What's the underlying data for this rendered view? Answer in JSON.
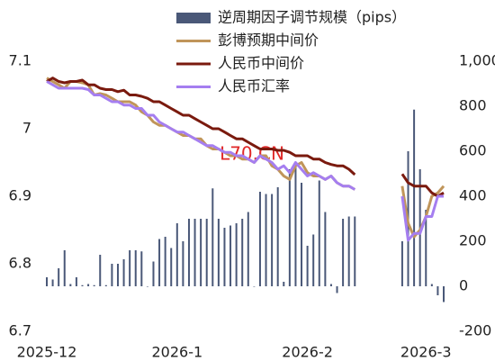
{
  "chart_data": {
    "type": "combo",
    "watermark": "L70.CN",
    "categories": [
      "2025-12",
      null,
      null,
      null,
      null,
      null,
      null,
      null,
      null,
      null,
      null,
      null,
      null,
      null,
      null,
      null,
      null,
      null,
      null,
      null,
      null,
      null,
      "2026-1",
      null,
      null,
      null,
      null,
      null,
      null,
      null,
      null,
      null,
      null,
      null,
      null,
      null,
      null,
      null,
      null,
      null,
      null,
      null,
      null,
      null,
      "2026-2",
      null,
      null,
      null,
      null,
      null,
      null,
      null,
      null,
      null,
      null,
      null,
      null,
      null,
      null,
      null,
      null,
      null,
      null,
      null,
      "2026-3",
      null,
      null,
      null
    ],
    "series": [
      {
        "name": "逆周期因子调节规模（pips）",
        "type": "bar",
        "axis": "y2",
        "color": "#4a5878",
        "values": [
          40,
          30,
          80,
          160,
          10,
          40,
          5,
          10,
          5,
          140,
          5,
          100,
          100,
          120,
          160,
          160,
          155,
          0,
          110,
          210,
          220,
          170,
          280,
          200,
          300,
          300,
          300,
          300,
          435,
          300,
          260,
          270,
          280,
          300,
          330,
          0,
          420,
          410,
          410,
          440,
          20,
          520,
          530,
          460,
          180,
          230,
          470,
          330,
          10,
          -30,
          300,
          310,
          310,
          null,
          null,
          null,
          null,
          null,
          null,
          null,
          200,
          600,
          785,
          520,
          340,
          10,
          -40,
          -70
        ]
      },
      {
        "name": "彭博预期中间价",
        "type": "line",
        "color": "#c0955a",
        "values": [
          7.075,
          7.07,
          7.065,
          7.06,
          7.07,
          7.07,
          7.068,
          7.065,
          7.05,
          7.052,
          7.05,
          7.045,
          7.04,
          7.04,
          7.04,
          7.035,
          7.025,
          7.02,
          7.01,
          7.005,
          7.005,
          7.0,
          6.995,
          6.99,
          6.99,
          6.985,
          6.985,
          6.975,
          6.97,
          6.97,
          6.965,
          6.96,
          6.96,
          6.955,
          6.955,
          6.95,
          6.96,
          6.96,
          6.945,
          6.94,
          6.93,
          6.925,
          6.945,
          6.95,
          6.935,
          6.93,
          6.93,
          6.925,
          6.93,
          6.92,
          6.915,
          6.915,
          6.91,
          null,
          null,
          null,
          null,
          null,
          null,
          null,
          6.915,
          6.86,
          6.84,
          6.85,
          6.87,
          6.9,
          6.905,
          6.915
        ]
      },
      {
        "name": "人民币中间价",
        "type": "line",
        "color": "#7a1a0e",
        "values": [
          7.07,
          7.075,
          7.07,
          7.068,
          7.07,
          7.07,
          7.072,
          7.065,
          7.065,
          7.06,
          7.058,
          7.058,
          7.055,
          7.057,
          7.05,
          7.05,
          7.048,
          7.045,
          7.04,
          7.04,
          7.035,
          7.03,
          7.025,
          7.02,
          7.02,
          7.015,
          7.01,
          7.005,
          7.0,
          7.0,
          6.995,
          6.99,
          6.985,
          6.985,
          6.98,
          6.975,
          6.97,
          6.97,
          6.97,
          6.968,
          6.968,
          6.965,
          6.96,
          6.96,
          6.96,
          6.955,
          6.955,
          6.95,
          6.947,
          6.945,
          6.945,
          6.94,
          6.932,
          null,
          null,
          null,
          null,
          null,
          null,
          null,
          6.933,
          6.92,
          6.915,
          6.915,
          6.915,
          6.905,
          6.9,
          6.905
        ]
      },
      {
        "name": "人民币汇率",
        "type": "line",
        "color": "#a57ef0",
        "values": [
          7.07,
          7.065,
          7.06,
          7.06,
          7.06,
          7.06,
          7.06,
          7.058,
          7.05,
          7.05,
          7.045,
          7.04,
          7.04,
          7.035,
          7.035,
          7.03,
          7.03,
          7.02,
          7.02,
          7.01,
          7.005,
          7.0,
          6.995,
          6.995,
          6.99,
          6.985,
          6.98,
          6.975,
          6.975,
          6.97,
          6.965,
          6.965,
          6.96,
          6.96,
          6.955,
          6.95,
          6.96,
          6.955,
          6.95,
          6.94,
          6.945,
          6.935,
          6.95,
          6.94,
          6.93,
          6.935,
          6.93,
          6.925,
          6.93,
          6.92,
          6.915,
          6.915,
          6.91,
          null,
          null,
          null,
          null,
          null,
          null,
          null,
          6.9,
          6.835,
          6.845,
          6.845,
          6.87,
          6.87,
          6.9,
          6.9
        ]
      }
    ],
    "ylim": [
      6.7,
      7.1
    ],
    "yticks": [
      6.7,
      6.8,
      6.9,
      7,
      7.1
    ],
    "y2lim": [
      -200,
      1000
    ],
    "y2ticks": [
      -200,
      0,
      200,
      400,
      600,
      {
        "value": 800,
        "label": "800"
      },
      {
        "value": 1000,
        "label": "1,000"
      }
    ],
    "legend": "top"
  }
}
